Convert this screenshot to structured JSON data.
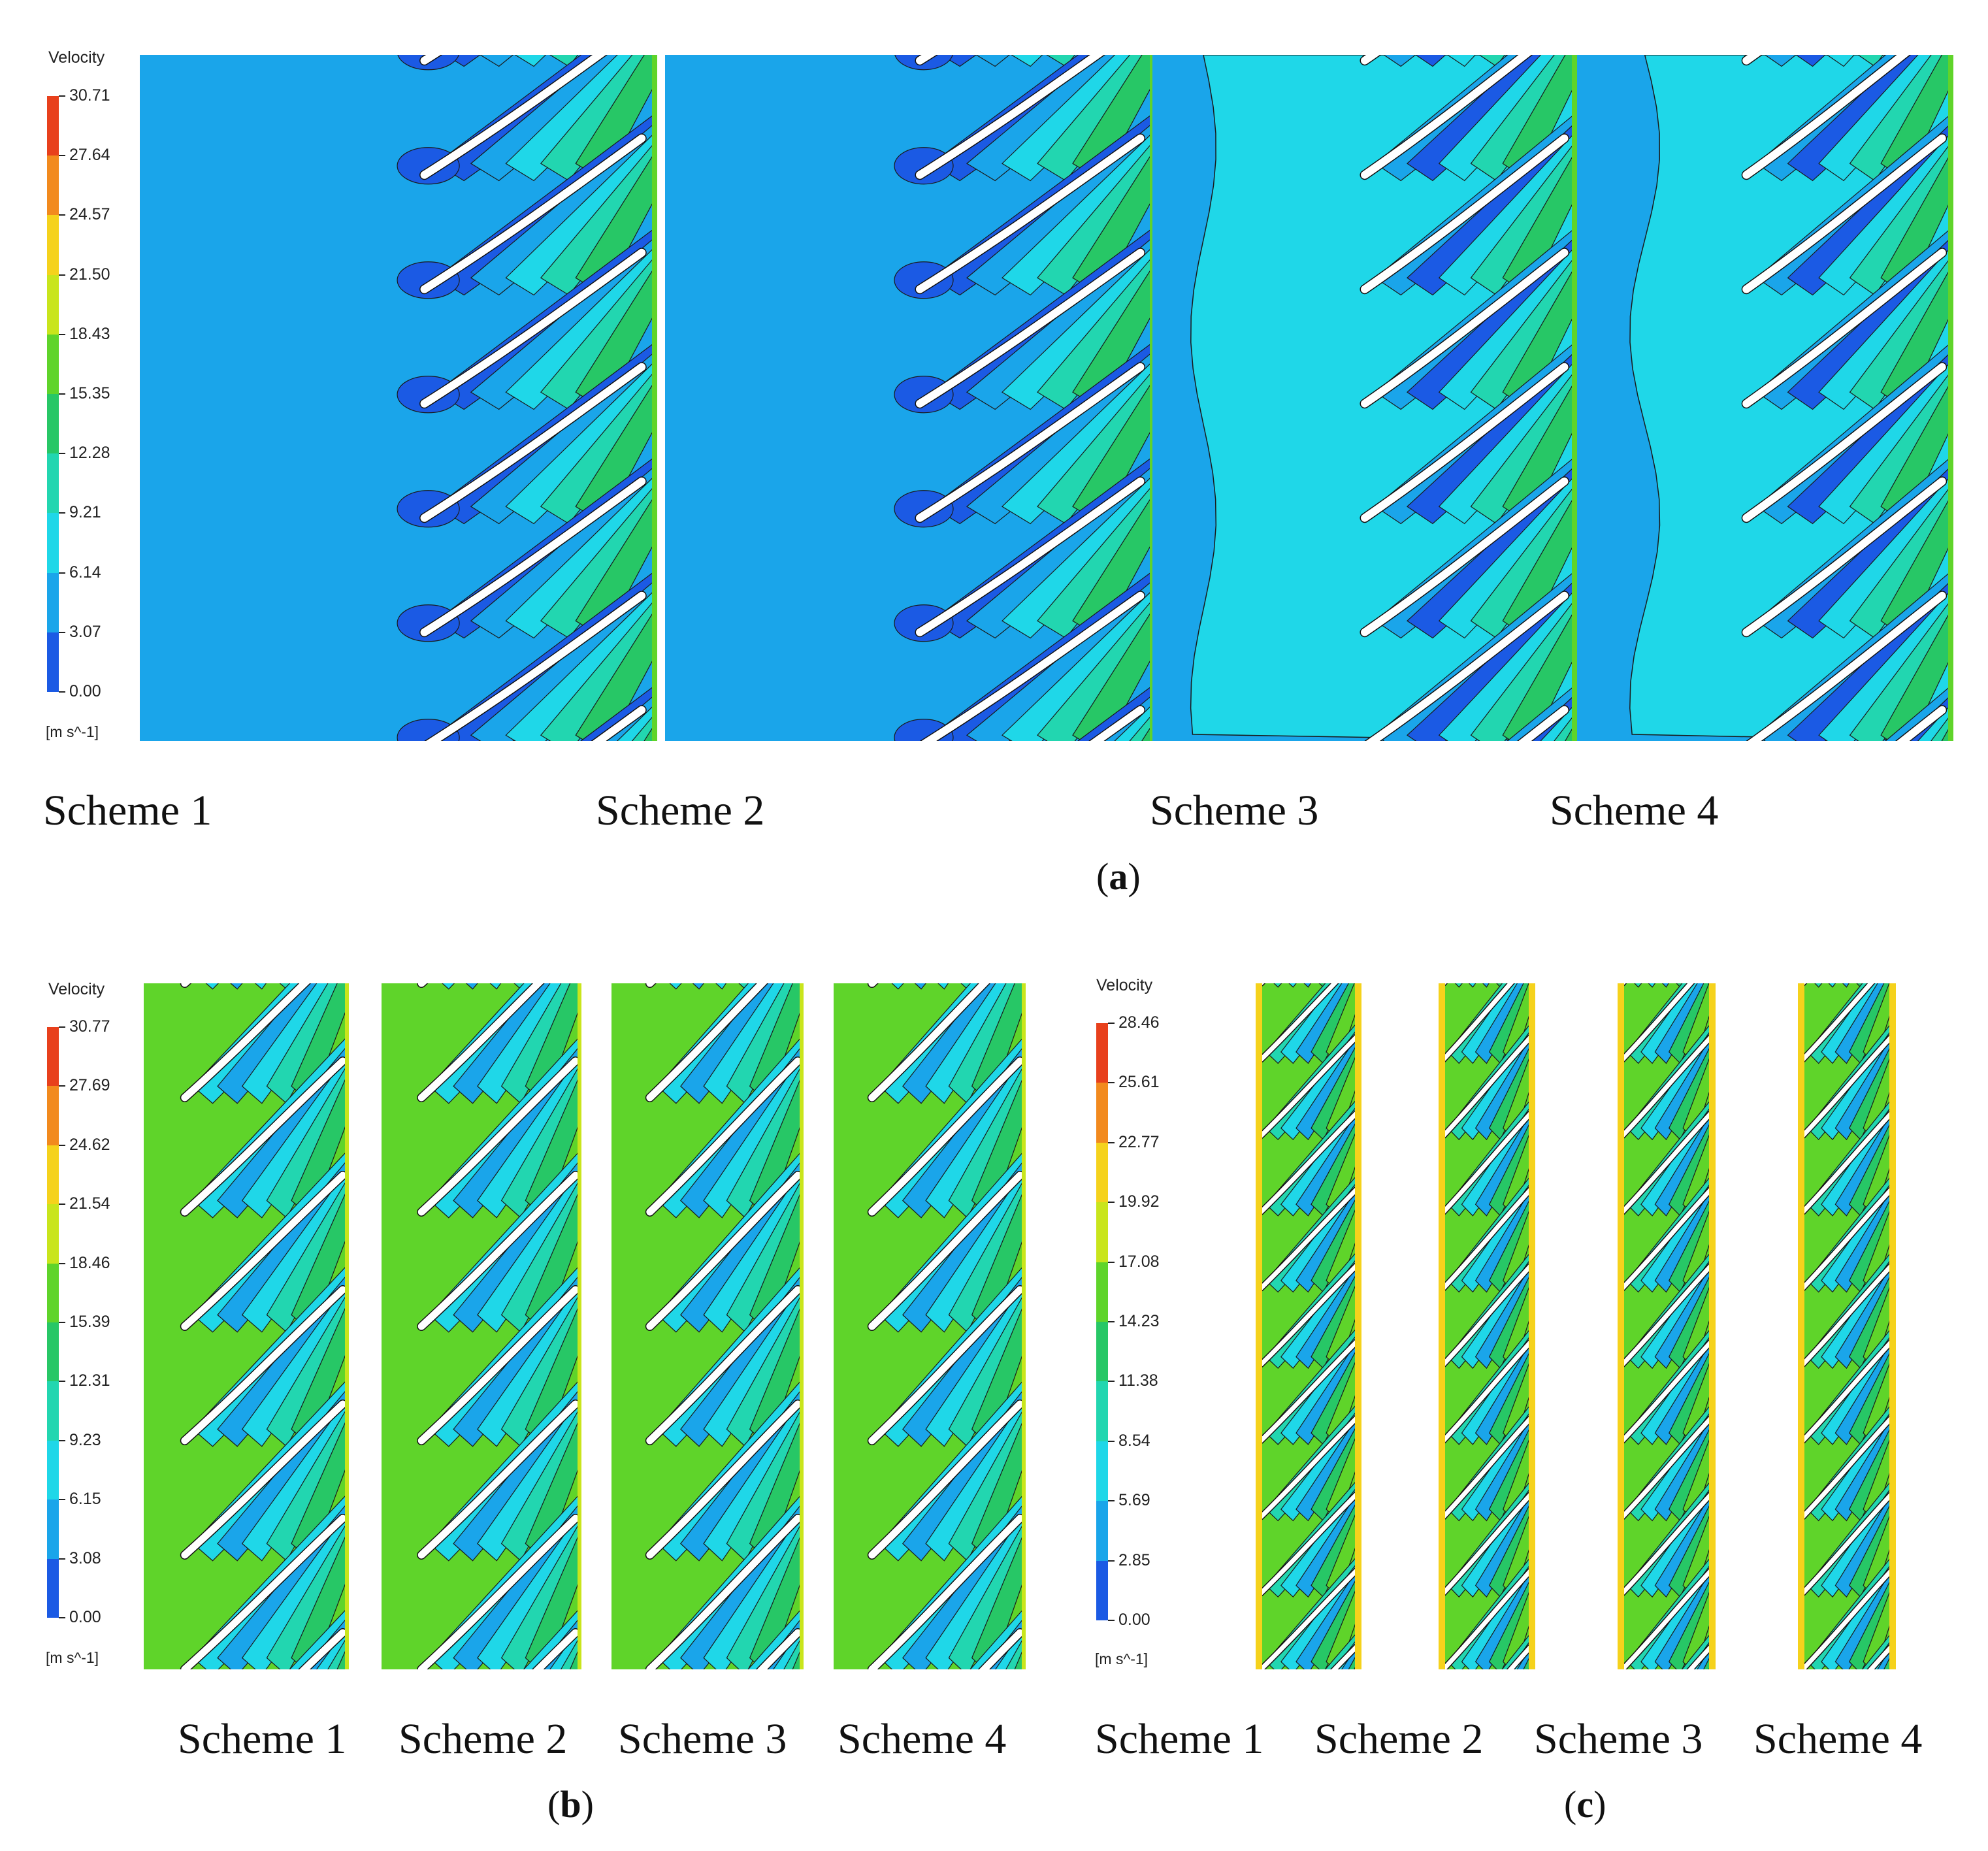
{
  "figure": {
    "panels": [
      {
        "id": "a",
        "colorbar": {
          "title": "Velocity",
          "unit": "[m s^-1]",
          "ticks": [
            "30.71",
            "27.64",
            "24.57",
            "21.50",
            "18.43",
            "15.35",
            "12.28",
            "9.21",
            "6.14",
            "3.07",
            "0.00"
          ]
        },
        "schemes": [
          "Scheme 1",
          "Scheme 2",
          "Scheme 3",
          "Scheme 4"
        ]
      },
      {
        "id": "b",
        "colorbar": {
          "title": "Velocity",
          "unit": "[m s^-1]",
          "ticks": [
            "30.77",
            "27.69",
            "24.62",
            "21.54",
            "18.46",
            "15.39",
            "12.31",
            "9.23",
            "6.15",
            "3.08",
            "0.00"
          ]
        },
        "schemes": [
          "Scheme 1",
          "Scheme 2",
          "Scheme 3",
          "Scheme 4"
        ]
      },
      {
        "id": "c",
        "colorbar": {
          "title": "Velocity",
          "unit": "[m s^-1]",
          "ticks": [
            "28.46",
            "25.61",
            "22.77",
            "19.92",
            "17.08",
            "14.23",
            "11.38",
            "8.54",
            "5.69",
            "2.85",
            "0.00"
          ]
        },
        "schemes": [
          "Scheme 1",
          "Scheme 2",
          "Scheme 3",
          "Scheme 4"
        ]
      }
    ],
    "colormap": [
      "#e8401c",
      "#f28a1e",
      "#f5d21c",
      "#c9e51c",
      "#5fd42a",
      "#27c766",
      "#22d6b0",
      "#1fd7e8",
      "#1aa5ea",
      "#1b5ae4",
      "#1b2fd4"
    ],
    "panel_labels": {
      "a": "a",
      "b": "b",
      "c": "c"
    }
  }
}
